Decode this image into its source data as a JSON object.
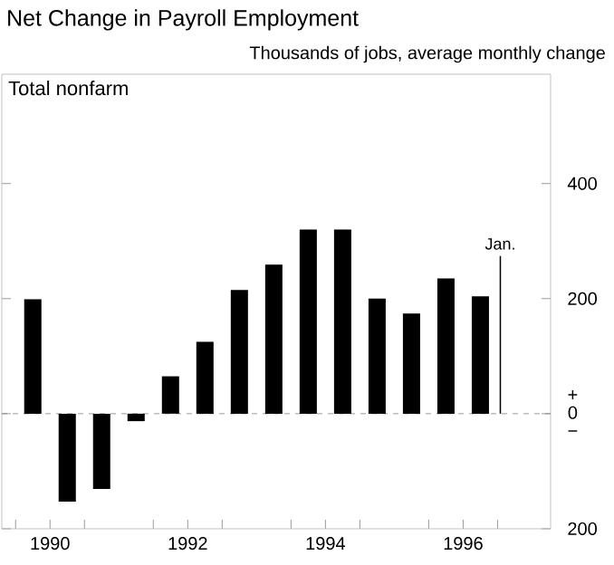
{
  "chart_data": {
    "type": "bar",
    "title": "Net Change in Payroll Employment",
    "subtitle": "Thousands of jobs, average monthly change",
    "annotations": [
      "Total nonfarm",
      {
        "text": "Jan.",
        "x": 1997.04,
        "y": 274
      }
    ],
    "series": [
      {
        "color": "#000000",
        "x": [
          1990.25,
          1990.75,
          1991.25,
          1991.75,
          1992.25,
          1992.75,
          1993.25,
          1993.75,
          1994.25,
          1994.75,
          1995.25,
          1995.75,
          1996.25,
          1996.75
        ],
        "values": [
          199,
          -153,
          -131,
          -13,
          65,
          125,
          215,
          259,
          320,
          320,
          200,
          174,
          235,
          204
        ]
      },
      {
        "color": "#000000",
        "x": [
          1997.04
        ],
        "values": [
          274
        ]
      }
    ],
    "xlim": [
      1989.8,
      1997.77
    ],
    "xticks": [
      {
        "value": 1990,
        "label": null
      },
      {
        "value": 1990.5,
        "label": "1990"
      },
      {
        "value": 1991,
        "label": null
      },
      {
        "value": 1992,
        "label": null
      },
      {
        "value": 1992.5,
        "label": "1992"
      },
      {
        "value": 1993,
        "label": null
      },
      {
        "value": 1994,
        "label": null
      },
      {
        "value": 1994.5,
        "label": "1994"
      },
      {
        "value": 1995,
        "label": null
      },
      {
        "value": 1996,
        "label": null
      },
      {
        "value": 1996.5,
        "label": "1996"
      },
      {
        "value": 1997,
        "label": null
      }
    ],
    "ylim": [
      -200,
      590
    ],
    "yticks": [
      {
        "value": -200,
        "label": "200"
      },
      {
        "value": 0,
        "label": "+ 0 −"
      },
      200,
      400
    ],
    "ref_lines": [
      {
        "axis": "y",
        "value": 0,
        "line_style": "dashed",
        "color": "#808080"
      }
    ],
    "grid": false
  }
}
